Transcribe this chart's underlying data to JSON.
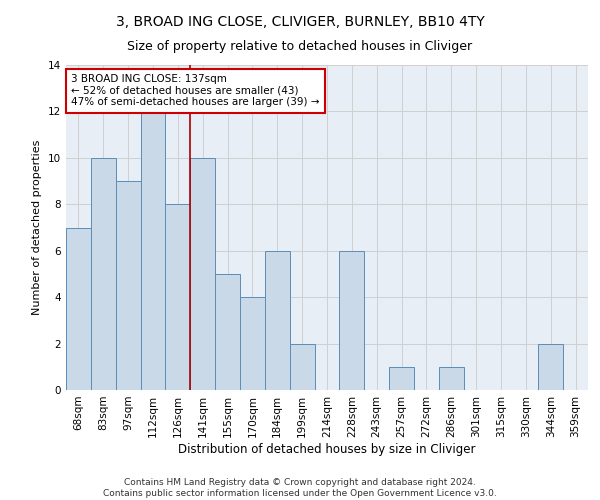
{
  "title": "3, BROAD ING CLOSE, CLIVIGER, BURNLEY, BB10 4TY",
  "subtitle": "Size of property relative to detached houses in Cliviger",
  "xlabel": "Distribution of detached houses by size in Cliviger",
  "ylabel": "Number of detached properties",
  "categories": [
    "68sqm",
    "83sqm",
    "97sqm",
    "112sqm",
    "126sqm",
    "141sqm",
    "155sqm",
    "170sqm",
    "184sqm",
    "199sqm",
    "214sqm",
    "228sqm",
    "243sqm",
    "257sqm",
    "272sqm",
    "286sqm",
    "301sqm",
    "315sqm",
    "330sqm",
    "344sqm",
    "359sqm"
  ],
  "values": [
    7,
    10,
    9,
    12,
    8,
    10,
    5,
    4,
    6,
    2,
    0,
    6,
    0,
    1,
    0,
    1,
    0,
    0,
    0,
    2,
    0
  ],
  "bar_color": "#c9d9e8",
  "bar_edge_color": "#5b8db8",
  "vline_x": 4.5,
  "vline_color": "#aa0000",
  "annotation_text": "3 BROAD ING CLOSE: 137sqm\n← 52% of detached houses are smaller (43)\n47% of semi-detached houses are larger (39) →",
  "annotation_box_color": "#ffffff",
  "annotation_box_edge_color": "#cc0000",
  "ylim": [
    0,
    14
  ],
  "yticks": [
    0,
    2,
    4,
    6,
    8,
    10,
    12,
    14
  ],
  "grid_color": "#d0d0d0",
  "background_color": "#e8eef5",
  "footer_text": "Contains HM Land Registry data © Crown copyright and database right 2024.\nContains public sector information licensed under the Open Government Licence v3.0.",
  "title_fontsize": 10,
  "subtitle_fontsize": 9,
  "xlabel_fontsize": 8.5,
  "ylabel_fontsize": 8,
  "tick_fontsize": 7.5,
  "annotation_fontsize": 7.5,
  "footer_fontsize": 6.5
}
